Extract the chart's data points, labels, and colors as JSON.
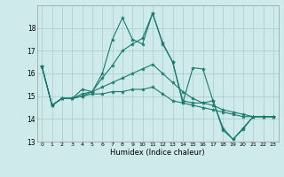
{
  "xlabel": "Humidex (Indice chaleur)",
  "background_color": "#ceeaea",
  "grid_color": "#afd0d0",
  "line_color": "#1a7a6e",
  "xlim": [
    -0.5,
    23.5
  ],
  "ylim": [
    13,
    19
  ],
  "yticks": [
    13,
    14,
    15,
    16,
    17,
    18
  ],
  "xtick_labels": [
    "0",
    "1",
    "2",
    "3",
    "4",
    "5",
    "6",
    "7",
    "8",
    "9",
    "10",
    "11",
    "12",
    "13",
    "14",
    "15",
    "16",
    "17",
    "18",
    "19",
    "20",
    "21",
    "22",
    "23"
  ],
  "series": [
    [
      16.3,
      14.6,
      14.9,
      14.9,
      15.3,
      15.2,
      16.0,
      17.5,
      18.45,
      17.5,
      17.3,
      18.65,
      17.3,
      16.5,
      14.7,
      16.25,
      16.2,
      14.8,
      13.5,
      13.1,
      13.55,
      14.1,
      14.1,
      14.1
    ],
    [
      16.3,
      14.6,
      14.9,
      14.9,
      15.0,
      15.2,
      15.8,
      16.35,
      17.0,
      17.3,
      17.55,
      18.65,
      17.35,
      16.5,
      14.8,
      14.7,
      14.7,
      14.8,
      13.6,
      13.1,
      13.6,
      14.1,
      14.1,
      14.1
    ],
    [
      16.3,
      14.6,
      14.9,
      14.9,
      15.1,
      15.2,
      15.4,
      15.6,
      15.8,
      16.0,
      16.2,
      16.4,
      16.0,
      15.6,
      15.2,
      14.9,
      14.7,
      14.6,
      14.4,
      14.3,
      14.2,
      14.1,
      14.1,
      14.1
    ],
    [
      16.3,
      14.6,
      14.9,
      14.9,
      15.0,
      15.1,
      15.1,
      15.2,
      15.2,
      15.3,
      15.3,
      15.4,
      15.1,
      14.8,
      14.7,
      14.6,
      14.5,
      14.4,
      14.3,
      14.2,
      14.1,
      14.1,
      14.1,
      14.1
    ]
  ]
}
